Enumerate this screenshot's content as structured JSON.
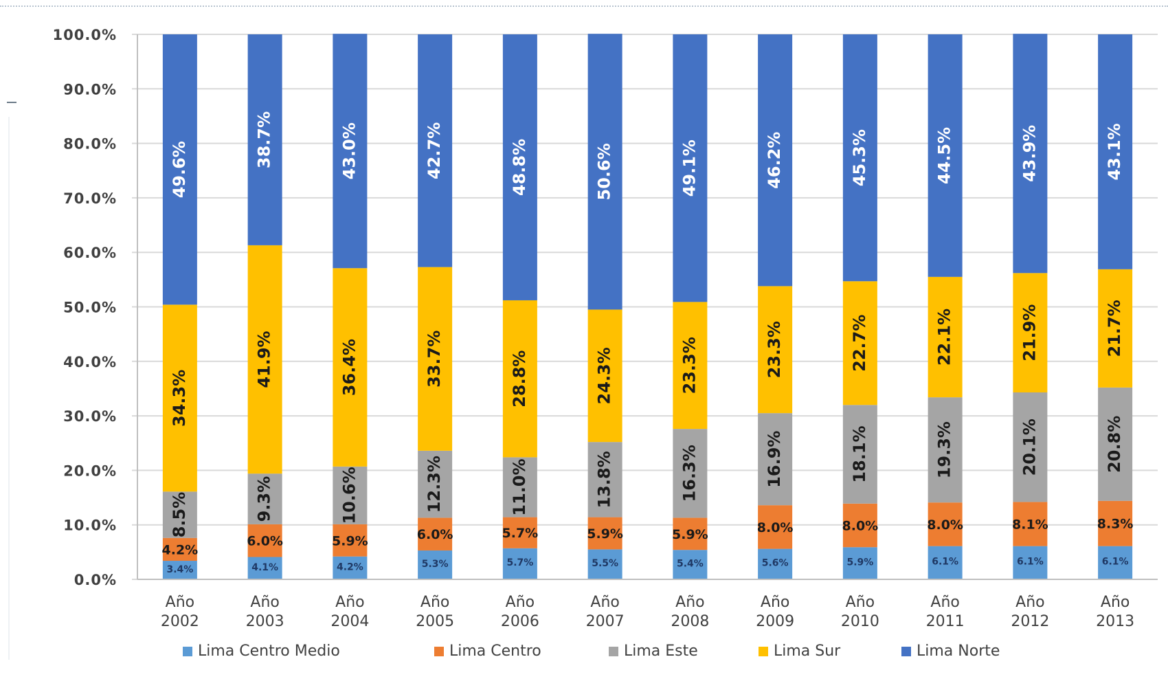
{
  "chart_data": {
    "type": "bar",
    "stacked": true,
    "categories": [
      "Año 2002",
      "Año 2003",
      "Año 2004",
      "Año 2005",
      "Año 2006",
      "Año 2007",
      "Año 2008",
      "Año 2009",
      "Año 2010",
      "Año 2011",
      "Año 2012",
      "Año 2013"
    ],
    "series": [
      {
        "name": "Lima Centro Medio",
        "color": "#5b9bd5",
        "values": [
          3.4,
          4.1,
          4.2,
          5.3,
          5.7,
          5.5,
          5.4,
          5.6,
          5.9,
          6.1,
          6.1,
          6.1
        ],
        "labels": [
          "3.4%",
          "4.1%",
          "4.2%",
          "5.3%",
          "5.7%",
          "5.5%",
          "5.4%",
          "5.6%",
          "5.9%",
          "6.1%",
          "6.1%",
          "6.1%"
        ]
      },
      {
        "name": "Lima Centro",
        "color": "#ed7d31",
        "values": [
          4.2,
          6.0,
          5.9,
          6.0,
          5.7,
          5.9,
          5.9,
          8.0,
          8.0,
          8.0,
          8.1,
          8.3
        ],
        "labels": [
          "4.2%",
          "6.0%",
          "5.9%",
          "6.0%",
          "5.7%",
          "5.9%",
          "5.9%",
          "8.0%",
          "8.0%",
          "8.0%",
          "8.1%",
          "8.3%"
        ]
      },
      {
        "name": "Lima Este",
        "color": "#a5a5a5",
        "values": [
          8.5,
          9.3,
          10.6,
          12.3,
          11.0,
          13.8,
          16.3,
          16.9,
          18.1,
          19.3,
          20.1,
          20.8
        ],
        "labels": [
          "8.5%",
          "9.3%",
          "10.6%",
          "12.3%",
          "11.0%",
          "13.8%",
          "16.3%",
          "16.9%",
          "18.1%",
          "19.3%",
          "20.1%",
          "20.8%"
        ]
      },
      {
        "name": "Lima Sur",
        "color": "#ffc000",
        "values": [
          34.3,
          41.9,
          36.4,
          33.7,
          28.8,
          24.3,
          23.3,
          23.3,
          22.7,
          22.1,
          21.9,
          21.7
        ],
        "labels": [
          "34.3%",
          "41.9%",
          "36.4%",
          "33.7%",
          "28.8%",
          "24.3%",
          "23.3%",
          "23.3%",
          "22.7%",
          "22.1%",
          "21.9%",
          "21.7%"
        ]
      },
      {
        "name": "Lima Norte",
        "color": "#4472c4",
        "values": [
          49.6,
          38.7,
          43.0,
          42.7,
          48.8,
          50.6,
          49.1,
          46.2,
          45.3,
          44.5,
          43.9,
          43.1
        ],
        "labels": [
          "49.6%",
          "38.7%",
          "43.0%",
          "42.7%",
          "48.8%",
          "50.6%",
          "49.1%",
          "46.2%",
          "45.3%",
          "44.5%",
          "43.9%",
          "43.1%"
        ]
      }
    ],
    "yticks": [
      "0.0%",
      "10.0%",
      "20.0%",
      "30.0%",
      "40.0%",
      "50.0%",
      "60.0%",
      "70.0%",
      "80.0%",
      "90.0%",
      "100.0%"
    ],
    "ylim": [
      0,
      100
    ],
    "grid": true,
    "legend_position": "bottom",
    "title": "",
    "xlabel": "",
    "ylabel": ""
  }
}
